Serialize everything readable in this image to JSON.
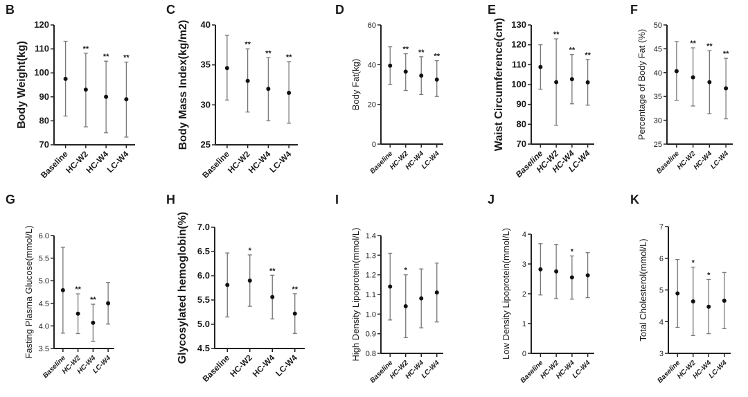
{
  "chart_data": [
    {
      "panel": "B",
      "type": "scatter",
      "title": "",
      "ylabel": "Body Weight(kg)",
      "categories": [
        "Baseline",
        "HC-W2",
        "HC-W4",
        "LC-W4"
      ],
      "ylim": [
        70,
        120
      ],
      "yticks": [
        "70",
        "80",
        "90",
        "100",
        "110",
        "120"
      ],
      "mean": [
        97.5,
        93,
        90,
        89
      ],
      "lower": [
        82,
        77.5,
        75,
        73.2
      ],
      "upper": [
        113.2,
        108.2,
        104.9,
        104.5
      ],
      "significance": [
        "",
        "**",
        "**",
        "**"
      ],
      "grid": false
    },
    {
      "panel": "C",
      "type": "scatter",
      "title": "",
      "ylabel": "Body Mass Index(kg/m2)",
      "categories": [
        "Baseline",
        "HC-W2",
        "HC-W4",
        "LC-W4"
      ],
      "ylim": [
        25,
        40
      ],
      "yticks": [
        "25",
        "30",
        "35",
        "40"
      ],
      "mean": [
        34.6,
        33,
        32,
        31.5
      ],
      "lower": [
        30.6,
        29.1,
        28,
        27.7
      ],
      "upper": [
        38.7,
        37,
        35.9,
        35.4
      ],
      "significance": [
        "",
        "**",
        "**",
        "**"
      ],
      "grid": false
    },
    {
      "panel": "D",
      "type": "scatter",
      "title": "",
      "ylabel": "Body Fat(kg)",
      "categories": [
        "Baseline",
        "HC-W2",
        "HC-W4",
        "LC-W4"
      ],
      "ylim": [
        0,
        60
      ],
      "yticks": [
        "0",
        "20",
        "40",
        "60"
      ],
      "mean": [
        39.5,
        36.5,
        34.5,
        32.5
      ],
      "lower": [
        30,
        27,
        25,
        24
      ],
      "upper": [
        49,
        45.5,
        44,
        42
      ],
      "significance": [
        "",
        "**",
        "**",
        "**"
      ],
      "grid": false
    },
    {
      "panel": "E",
      "type": "scatter",
      "title": "",
      "ylabel": "Waist Circumference(cm)",
      "categories": [
        "Baseline",
        "HC-W2",
        "HC-W4",
        "LC-W4"
      ],
      "ylim": [
        70,
        130
      ],
      "yticks": [
        "70",
        "80",
        "90",
        "100",
        "110",
        "120",
        "130"
      ],
      "mean": [
        108.8,
        101.2,
        102.7,
        101.1
      ],
      "lower": [
        97.6,
        79.5,
        90.3,
        89.6
      ],
      "upper": [
        120,
        123,
        115.1,
        112.6
      ],
      "significance": [
        "",
        "**",
        "**",
        "**"
      ],
      "grid": false
    },
    {
      "panel": "F",
      "type": "scatter",
      "title": "",
      "ylabel": "Percentage of Body Fat (%)",
      "categories": [
        "Baseline",
        "HC-W2",
        "HC-W4",
        "LC-W4"
      ],
      "ylim": [
        25,
        50
      ],
      "yticks": [
        "25",
        "30",
        "35",
        "40",
        "45",
        "50"
      ],
      "mean": [
        40.3,
        39,
        38,
        36.7
      ],
      "lower": [
        34.2,
        33,
        31.4,
        30.3
      ],
      "upper": [
        46.5,
        45.2,
        44.6,
        43
      ],
      "significance": [
        "",
        "**",
        "**",
        "**"
      ],
      "grid": false
    },
    {
      "panel": "G",
      "type": "scatter",
      "title": "",
      "ylabel": "Fasting Plasma Glucose(mmol/L)",
      "categories": [
        "Baseline",
        "HC-W2",
        "HC-W4",
        "LC-W4"
      ],
      "ylim": [
        3.5,
        6.0
      ],
      "yticks": [
        "3.5",
        "4.0",
        "4.5",
        "5.0",
        "5.5",
        "6.0"
      ],
      "mean": [
        4.79,
        4.27,
        4.07,
        4.5
      ],
      "lower": [
        3.84,
        3.83,
        3.66,
        4.04
      ],
      "upper": [
        5.74,
        4.71,
        4.48,
        4.96
      ],
      "significance": [
        "",
        "**",
        "**",
        ""
      ],
      "grid": false
    },
    {
      "panel": "H",
      "type": "scatter",
      "title": "",
      "ylabel": "Glycosylated hemoglobin(%)",
      "categories": [
        "Baseline",
        "HC-W2",
        "HC-W4",
        "LC-W4"
      ],
      "ylim": [
        4.5,
        7.0
      ],
      "yticks": [
        "4.5",
        "5.0",
        "5.5",
        "6.0",
        "6.5",
        "7.0"
      ],
      "mean": [
        5.81,
        5.9,
        5.56,
        5.22
      ],
      "lower": [
        5.15,
        5.37,
        5.11,
        4.81
      ],
      "upper": [
        6.47,
        6.43,
        6.01,
        5.63
      ],
      "significance": [
        "",
        "*",
        "**",
        "**"
      ],
      "grid": false
    },
    {
      "panel": "I",
      "type": "scatter",
      "title": "",
      "ylabel": "High Density Lipoprotein(mmol/L)",
      "categories": [
        "Baseline",
        "HC-W2",
        "HC-W4",
        "LC-W4"
      ],
      "ylim": [
        0.8,
        1.4
      ],
      "yticks": [
        "0.8",
        "0.9",
        "1.0",
        "1.1",
        "1.2",
        "1.3",
        "1.4"
      ],
      "mean": [
        1.14,
        1.04,
        1.08,
        1.11
      ],
      "lower": [
        0.97,
        0.88,
        0.93,
        0.96
      ],
      "upper": [
        1.31,
        1.2,
        1.23,
        1.26
      ],
      "significance": [
        "",
        "*",
        "",
        ""
      ],
      "grid": false
    },
    {
      "panel": "J",
      "type": "scatter",
      "title": "",
      "ylabel": "Low Density Lipoprotein(mmol/L)",
      "categories": [
        "Baseline",
        "HC-W2",
        "HC-W4",
        "LC-W4"
      ],
      "ylim": [
        0,
        4
      ],
      "yticks": [
        "0",
        "1",
        "2",
        "3",
        "4"
      ],
      "mean": [
        2.82,
        2.75,
        2.55,
        2.62
      ],
      "lower": [
        1.96,
        1.84,
        1.82,
        1.87
      ],
      "upper": [
        3.68,
        3.66,
        3.27,
        3.38
      ],
      "significance": [
        "",
        "",
        "*",
        ""
      ],
      "grid": false
    },
    {
      "panel": "K",
      "type": "scatter",
      "title": "",
      "ylabel": "Total Cholesterol(mmol/L)",
      "categories": [
        "Baseline",
        "HC-W2",
        "HC-W4",
        "LC-W4"
      ],
      "ylim": [
        3,
        7
      ],
      "yticks": [
        "3",
        "4",
        "5",
        "6",
        "7"
      ],
      "mean": [
        4.89,
        4.64,
        4.47,
        4.66
      ],
      "lower": [
        3.82,
        3.56,
        3.62,
        3.78
      ],
      "upper": [
        5.96,
        5.72,
        5.33,
        5.55
      ],
      "significance": [
        "",
        "*",
        "*",
        ""
      ],
      "grid": false
    }
  ]
}
